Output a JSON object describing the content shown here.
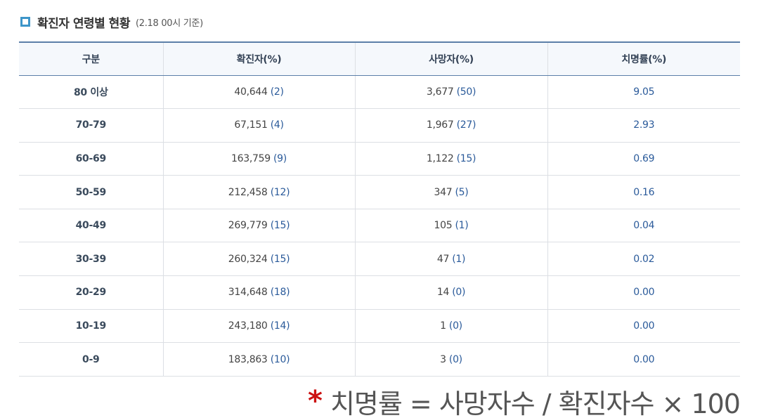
{
  "header": {
    "icon": "square-bullet-icon",
    "title": "확진자 연령별 현황",
    "subtitle": "(2.18 00시 기준)"
  },
  "table": {
    "columns": [
      "구분",
      "확진자(%)",
      "사망자(%)",
      "치명률(%)"
    ],
    "rows": [
      {
        "age": "80 이상",
        "cases": "40,644",
        "cases_pct": "(2)",
        "deaths": "3,677",
        "deaths_pct": "(50)",
        "rate": "9.05"
      },
      {
        "age": "70-79",
        "cases": "67,151",
        "cases_pct": "(4)",
        "deaths": "1,967",
        "deaths_pct": "(27)",
        "rate": "2.93"
      },
      {
        "age": "60-69",
        "cases": "163,759",
        "cases_pct": "(9)",
        "deaths": "1,122",
        "deaths_pct": "(15)",
        "rate": "0.69"
      },
      {
        "age": "50-59",
        "cases": "212,458",
        "cases_pct": "(12)",
        "deaths": "347",
        "deaths_pct": "(5)",
        "rate": "0.16"
      },
      {
        "age": "40-49",
        "cases": "269,779",
        "cases_pct": "(15)",
        "deaths": "105",
        "deaths_pct": "(1)",
        "rate": "0.04"
      },
      {
        "age": "30-39",
        "cases": "260,324",
        "cases_pct": "(15)",
        "deaths": "47",
        "deaths_pct": "(1)",
        "rate": "0.02"
      },
      {
        "age": "20-29",
        "cases": "314,648",
        "cases_pct": "(18)",
        "deaths": "14",
        "deaths_pct": "(0)",
        "rate": "0.00"
      },
      {
        "age": "10-19",
        "cases": "243,180",
        "cases_pct": "(14)",
        "deaths": "1",
        "deaths_pct": "(0)",
        "rate": "0.00"
      },
      {
        "age": "0-9",
        "cases": "183,863",
        "cases_pct": "(10)",
        "deaths": "3",
        "deaths_pct": "(0)",
        "rate": "0.00"
      }
    ]
  },
  "footnote": {
    "asterisk": "*",
    "formula": "치명률 = 사망자수 / 확진자수 × 100"
  },
  "colors": {
    "accent": "#3d95c9",
    "header_border": "#5b7fa8",
    "header_bg": "#f5f8fc",
    "percent_text": "#2a5a9a",
    "asterisk": "#cc1111"
  }
}
